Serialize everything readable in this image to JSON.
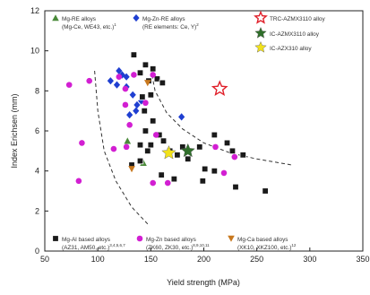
{
  "chart_data": {
    "type": "scatter",
    "xlabel": "Yield strength (MPa)",
    "ylabel": "Index Erichsen (mm)",
    "xlim": [
      50,
      350
    ],
    "ylim": [
      0,
      12
    ],
    "xticks": [
      "50",
      "100",
      "150",
      "200",
      "250",
      "300",
      "350"
    ],
    "yticks": [
      "0",
      "2",
      "4",
      "6",
      "8",
      "10",
      "12"
    ],
    "grid": false,
    "legend_placement": "top and bottom inside plot",
    "series": [
      {
        "key": "mg_re",
        "legend_lines": [
          "Mg-RE alloys",
          "(Mg-Ce, WE43, etc.)"
        ],
        "legend_sup": "1",
        "marker": "triangle-up",
        "color": "#4a8a3a",
        "points": [
          [
            128,
            5.5
          ],
          [
            143,
            4.4
          ]
        ]
      },
      {
        "key": "mg_zn_re",
        "legend_lines": [
          "Mg-Zn-RE alloys",
          "(RE elements: Ce, Y)"
        ],
        "legend_sup": "2",
        "marker": "diamond",
        "color": "#1f3fd1",
        "points": [
          [
            112,
            8.5
          ],
          [
            120,
            9.0
          ],
          [
            123,
            8.8
          ],
          [
            118,
            8.3
          ],
          [
            127,
            8.2
          ],
          [
            133,
            7.8
          ],
          [
            137,
            7.3
          ],
          [
            136,
            7.0
          ],
          [
            130,
            6.8
          ],
          [
            141,
            7.5
          ],
          [
            179,
            6.7
          ],
          [
            127,
            8.7
          ]
        ]
      },
      {
        "key": "mg_al",
        "legend_lines": [
          "Mg-Al based alloys",
          "(AZ31, AM50, etc.)"
        ],
        "legend_sup": "3,4,5,6,7",
        "marker": "square",
        "color": "#1a1a1a",
        "points": [
          [
            134,
            9.8
          ],
          [
            145,
            9.3
          ],
          [
            152,
            9.1
          ],
          [
            140,
            8.9
          ],
          [
            148,
            8.5
          ],
          [
            142,
            7.7
          ],
          [
            150,
            7.8
          ],
          [
            144,
            7.0
          ],
          [
            152,
            6.5
          ],
          [
            145,
            6.0
          ],
          [
            158,
            5.8
          ],
          [
            162,
            5.5
          ],
          [
            168,
            5.0
          ],
          [
            175,
            4.8
          ],
          [
            180,
            5.2
          ],
          [
            185,
            4.6
          ],
          [
            196,
            5.2
          ],
          [
            201,
            4.1
          ],
          [
            210,
            4.0
          ],
          [
            150,
            5.3
          ],
          [
            140,
            5.3
          ],
          [
            160,
            3.8
          ],
          [
            172,
            3.6
          ],
          [
            199,
            3.5
          ],
          [
            230,
            3.2
          ],
          [
            258,
            3.0
          ],
          [
            222,
            5.4
          ],
          [
            227,
            5.0
          ],
          [
            237,
            4.8
          ],
          [
            210,
            5.8
          ],
          [
            156,
            8.6
          ],
          [
            161,
            8.4
          ],
          [
            132,
            4.3
          ],
          [
            140,
            4.5
          ],
          [
            147,
            5.0
          ]
        ]
      },
      {
        "key": "mg_zn",
        "legend_lines": [
          "Mg-Zn based alloys",
          "(ZK60, ZK30, etc.)"
        ],
        "legend_sup": "8,9,10,11",
        "marker": "circle",
        "color": "#d21fd2",
        "points": [
          [
            73,
            8.3
          ],
          [
            92,
            8.5
          ],
          [
            82,
            3.5
          ],
          [
            85,
            5.4
          ],
          [
            120,
            8.7
          ],
          [
            126,
            8.1
          ],
          [
            126,
            7.3
          ],
          [
            130,
            6.3
          ],
          [
            145,
            7.4
          ],
          [
            152,
            8.8
          ],
          [
            155,
            5.8
          ],
          [
            152,
            3.4
          ],
          [
            115,
            5.1
          ],
          [
            127,
            5.2
          ],
          [
            211,
            5.2
          ],
          [
            229,
            4.7
          ],
          [
            219,
            3.9
          ],
          [
            166,
            3.4
          ],
          [
            134,
            8.8
          ]
        ]
      },
      {
        "key": "mg_ca",
        "legend_lines": [
          "Mg-Ca based alloys",
          "(XK10, XKZ100, etc.)"
        ],
        "legend_sup": "12",
        "marker": "triangle-down",
        "color": "#c8781e",
        "points": [
          [
            132,
            4.1
          ],
          [
            147,
            8.4
          ]
        ]
      },
      {
        "key": "trc",
        "legend_lines": [
          "TRC-AZMX3110 alloy"
        ],
        "legend_sup": "",
        "marker": "star-open",
        "color": "#e0202a",
        "points": [
          [
            215,
            8.1
          ]
        ]
      },
      {
        "key": "ic_azmx",
        "legend_lines": [
          "IC-AZMX3110 alloy"
        ],
        "legend_sup": "",
        "marker": "star",
        "color": "#2f6e2a",
        "points": [
          [
            185,
            5.0
          ]
        ]
      },
      {
        "key": "ic_azx",
        "legend_lines": [
          "IC-AZX310 alloy"
        ],
        "legend_sup": "",
        "marker": "star",
        "color": "#f1e11a",
        "points": [
          [
            167,
            4.9
          ]
        ]
      }
    ],
    "guide_curves": [
      [
        [
          97,
          9.0
        ],
        [
          100,
          7.0
        ],
        [
          106,
          5.0
        ],
        [
          117,
          3.5
        ],
        [
          132,
          2.2
        ],
        [
          148,
          1.3
        ]
      ],
      [
        [
          150,
          9.1
        ],
        [
          154,
          8.0
        ],
        [
          165,
          6.9
        ],
        [
          180,
          6.1
        ],
        [
          200,
          5.4
        ],
        [
          225,
          4.9
        ],
        [
          250,
          4.6
        ],
        [
          283,
          4.3
        ]
      ]
    ]
  }
}
